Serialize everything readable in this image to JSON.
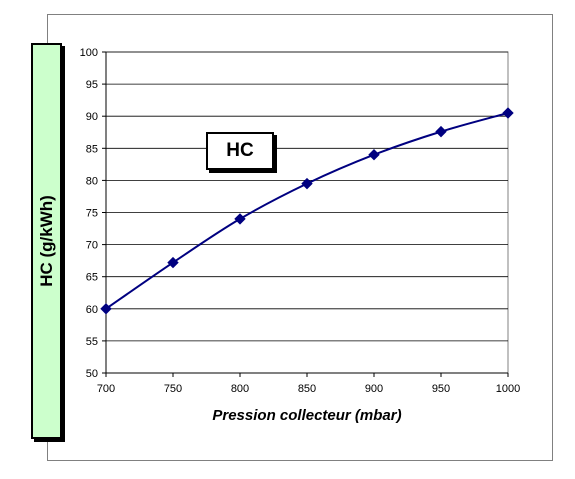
{
  "chart_data": {
    "type": "line",
    "title": "HC",
    "xlabel": "Pression collecteur (mbar)",
    "ylabel": "HC (g/kWh)",
    "xlim": [
      700,
      1000
    ],
    "ylim": [
      50,
      100
    ],
    "xticks": [
      700,
      750,
      800,
      850,
      900,
      950,
      1000
    ],
    "yticks": [
      50,
      55,
      60,
      65,
      70,
      75,
      80,
      85,
      90,
      95,
      100
    ],
    "grid": true,
    "series": [
      {
        "x": [
          700,
          750,
          800,
          850,
          900,
          950,
          1000
        ],
        "y": [
          60,
          67.2,
          74,
          79.5,
          84,
          87.6,
          90.5
        ],
        "color": "#000080",
        "marker": "diamond"
      }
    ]
  }
}
